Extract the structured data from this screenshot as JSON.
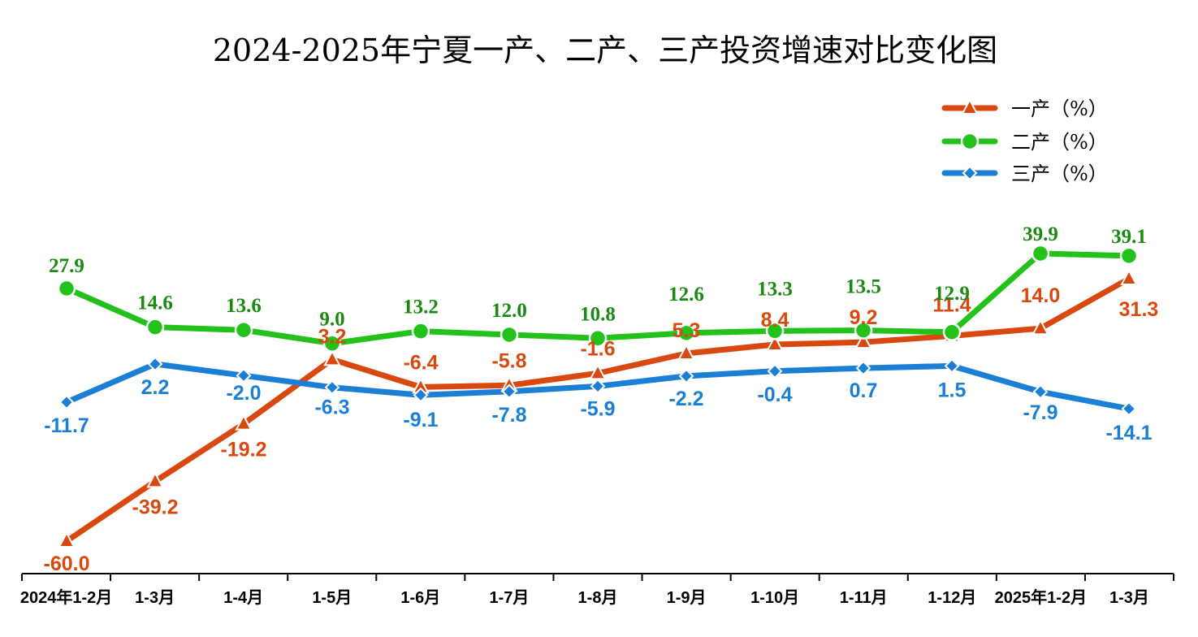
{
  "chart_data": {
    "type": "line",
    "title": "2024-2025年宁夏一产、二产、三产投资增速对比变化图",
    "categories": [
      "2024年1-2月",
      "1-3月",
      "1-4月",
      "1-5月",
      "1-6月",
      "1-7月",
      "1-8月",
      "1-9月",
      "1-10月",
      "1-11月",
      "1-12月",
      "2025年1-2月",
      "1-3月"
    ],
    "series": [
      {
        "name": "一产（%）",
        "values": [
          -60.0,
          -39.2,
          -19.2,
          3.2,
          -6.4,
          -5.8,
          -1.6,
          5.3,
          8.4,
          9.2,
          11.4,
          14.0,
          31.3
        ],
        "labels": [
          "-60.0",
          "-39.2",
          "-19.2",
          "3.2",
          "-6.4",
          "-5.8",
          "-1.6",
          "5.3",
          "8.4",
          "9.2",
          "11.4",
          "14.0",
          "31.3"
        ],
        "color": "#D9480F",
        "marker": "triangle"
      },
      {
        "name": "二产（%）",
        "values": [
          27.9,
          14.6,
          13.6,
          9.0,
          13.2,
          12.0,
          10.8,
          12.6,
          13.3,
          13.5,
          12.9,
          39.9,
          39.1
        ],
        "labels": [
          "27.9",
          "14.6",
          "13.6",
          "9.0",
          "13.2",
          "12.0",
          "10.8",
          "12.6",
          "13.3",
          "13.5",
          "12.9",
          "39.9",
          "39.1"
        ],
        "color": "#22C21A",
        "label_color": "#1A8A12",
        "marker": "circle"
      },
      {
        "name": "三产（%）",
        "values": [
          -11.7,
          2.2,
          -2.0,
          -6.3,
          -9.1,
          -7.8,
          -5.9,
          -2.2,
          -0.4,
          0.7,
          1.5,
          -7.9,
          -14.1
        ],
        "labels": [
          "-11.7",
          "2.2",
          "-2.0",
          "-6.3",
          "-9.1",
          "-7.8",
          "-5.9",
          "-2.2",
          "-0.4",
          "0.7",
          "1.5",
          "-7.9",
          "-14.1"
        ],
        "color": "#1B7FD6",
        "marker": "diamond"
      }
    ],
    "legend": "top-right",
    "grid": false
  }
}
